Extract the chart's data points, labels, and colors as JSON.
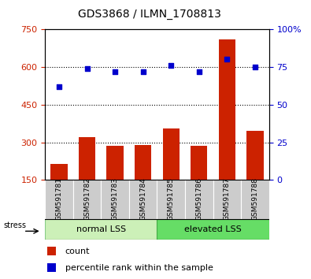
{
  "title": "GDS3868 / ILMN_1708813",
  "categories": [
    "GSM591781",
    "GSM591782",
    "GSM591783",
    "GSM591784",
    "GSM591785",
    "GSM591786",
    "GSM591787",
    "GSM591788"
  ],
  "bar_values": [
    215,
    320,
    285,
    290,
    355,
    285,
    710,
    345
  ],
  "dot_values_pct": [
    62,
    74,
    72,
    72,
    76,
    72,
    80,
    75
  ],
  "bar_color": "#cc2200",
  "dot_color": "#0000cc",
  "ylim_left": [
    150,
    750
  ],
  "ylim_right": [
    0,
    100
  ],
  "yticks_left": [
    150,
    300,
    450,
    600,
    750
  ],
  "yticks_right": [
    0,
    25,
    50,
    75,
    100
  ],
  "grid_lines": [
    300,
    450,
    600
  ],
  "group1_label": "normal LSS",
  "group2_label": "elevated LSS",
  "group1_indices": [
    0,
    1,
    2,
    3
  ],
  "group2_indices": [
    4,
    5,
    6,
    7
  ],
  "stress_label": "stress",
  "legend_count": "count",
  "legend_pct": "percentile rank within the sample",
  "bg_color": "#ffffff",
  "plot_bg": "#ffffff",
  "group1_color": "#ccf0b8",
  "group2_color": "#66dd66",
  "tick_label_bg": "#cccccc"
}
